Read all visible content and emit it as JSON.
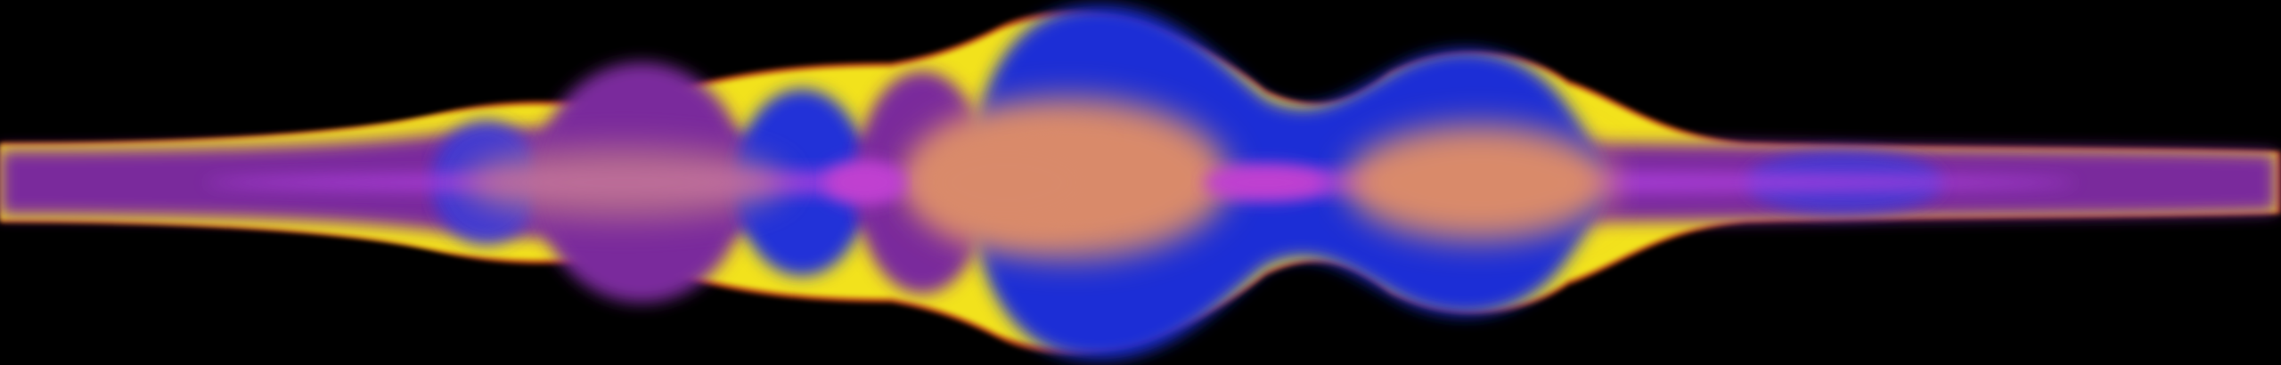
{
  "scene": {
    "kind": "audio-waveform-visualization",
    "background_color": "#000000",
    "palette": {
      "yellow_rim": "#f2e21a",
      "orange_rim": "#d9501e",
      "blue_lobe": "#1f2fd6",
      "purple_lobe": "#7a2a9c",
      "violet_core": "#9a3ad8",
      "peach_core": "#d98a6a",
      "magenta_core": "#c040d0"
    }
  }
}
